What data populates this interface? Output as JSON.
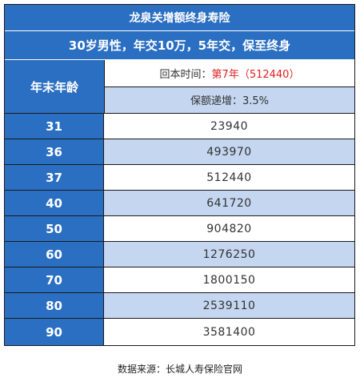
{
  "table": {
    "title": "龙泉关增额终身寿险",
    "subtitle": "30岁男性，年交10万，5年交，保至终身",
    "age_header": "年末年龄",
    "payback_label": "回本时间：",
    "payback_value": "第7年（512440）",
    "growth_label": "保额递增：3.5%",
    "rows": [
      {
        "age": "31",
        "value": "23940"
      },
      {
        "age": "36",
        "value": "493970"
      },
      {
        "age": "37",
        "value": "512440"
      },
      {
        "age": "40",
        "value": "641720"
      },
      {
        "age": "50",
        "value": "904820"
      },
      {
        "age": "60",
        "value": "1276250"
      },
      {
        "age": "70",
        "value": "1800150"
      },
      {
        "age": "80",
        "value": "2539110"
      },
      {
        "age": "90",
        "value": "3581400"
      }
    ]
  },
  "footer": {
    "source": "数据来源：长城人寿保险官网"
  },
  "colors": {
    "header_blue": "#2b6fc2",
    "alt_row": "#c4d6f0",
    "highlight": "#e02020"
  }
}
